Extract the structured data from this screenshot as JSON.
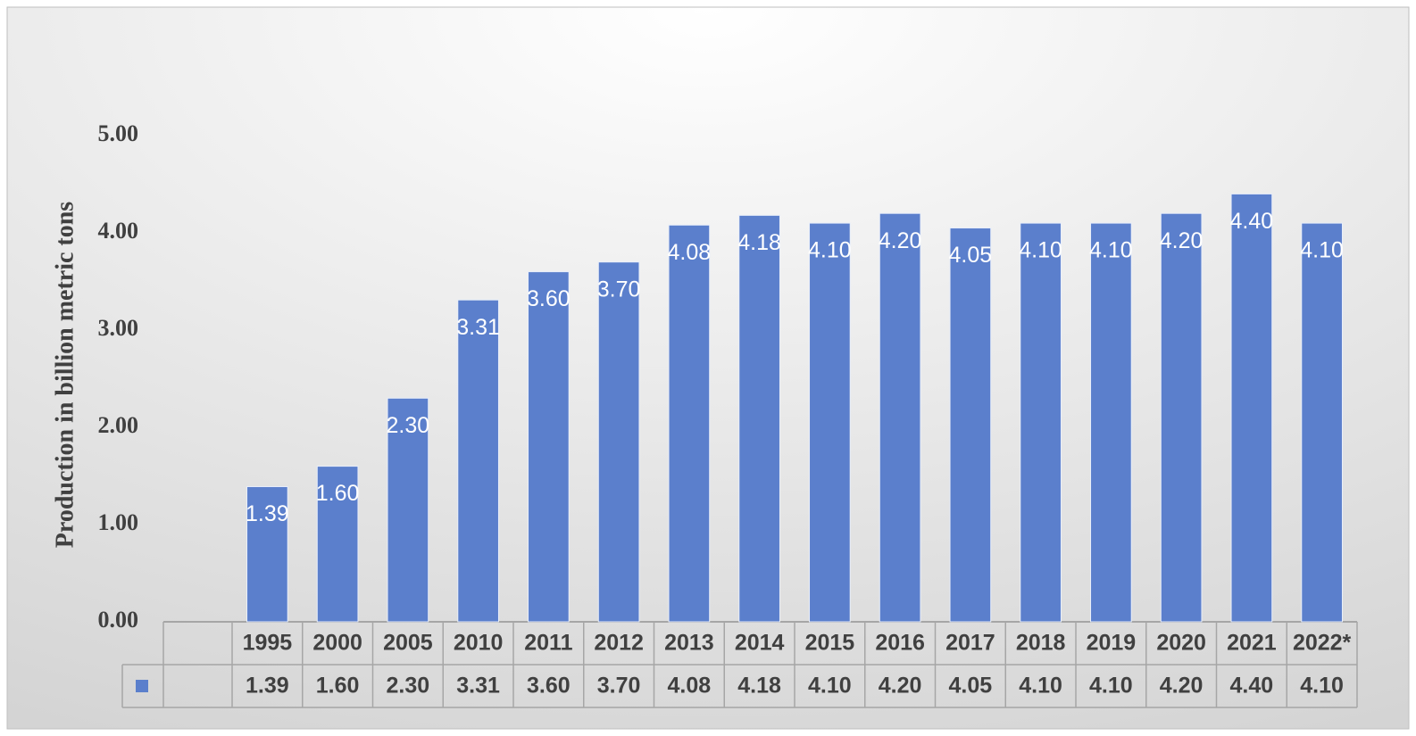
{
  "chart_data": {
    "type": "bar",
    "y_label": "Production in billion metric tons",
    "categories": [
      "1995",
      "2000",
      "2005",
      "2010",
      "2011",
      "2012",
      "2013",
      "2014",
      "2015",
      "2016",
      "2017",
      "2018",
      "2019",
      "2020",
      "2021",
      "2022*"
    ],
    "values": [
      1.39,
      1.6,
      2.3,
      3.31,
      3.6,
      3.7,
      4.08,
      4.18,
      4.1,
      4.2,
      4.05,
      4.1,
      4.1,
      4.2,
      4.4,
      4.1
    ],
    "value_labels": [
      "1.39",
      "1.60",
      "2.30",
      "3.31",
      "3.60",
      "3.70",
      "4.08",
      "4.18",
      "4.10",
      "4.20",
      "4.05",
      "4.10",
      "4.10",
      "4.20",
      "4.40",
      "4.10"
    ],
    "color": "#5b7fcc",
    "ylim": [
      0,
      5
    ],
    "yticks": [
      {
        "value": 0,
        "label": "0.00"
      },
      {
        "value": 1,
        "label": "1.00"
      },
      {
        "value": 2,
        "label": "2.00"
      },
      {
        "value": 3,
        "label": "3.00"
      },
      {
        "value": 4,
        "label": "4.00"
      },
      {
        "value": 5,
        "label": "5.00"
      }
    ],
    "grid": false
  }
}
